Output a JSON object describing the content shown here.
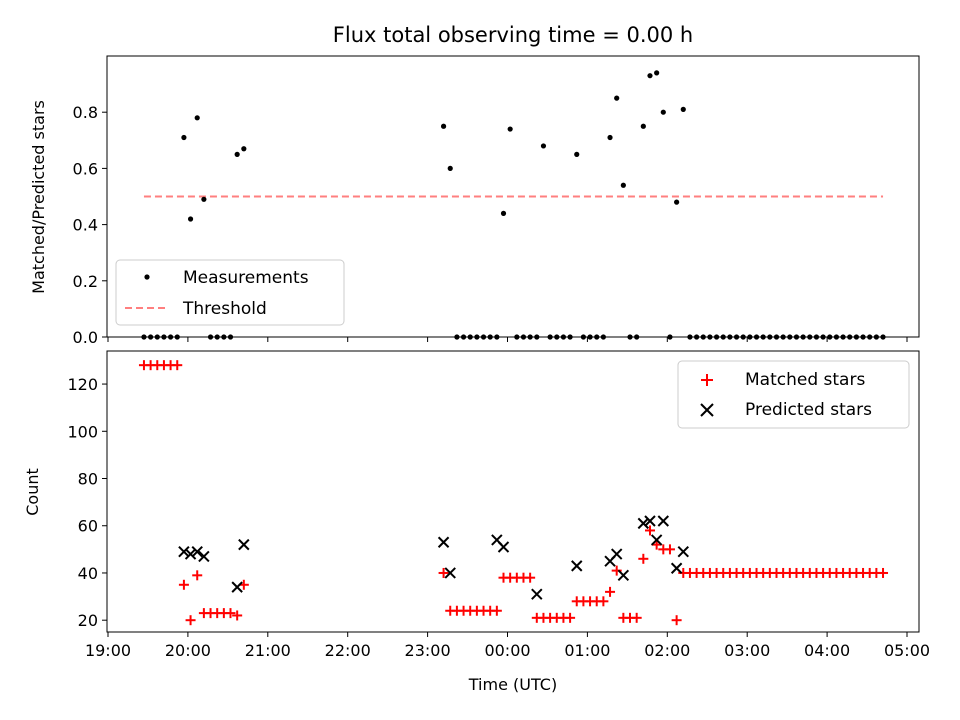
{
  "chart_data": [
    {
      "type": "scatter",
      "title": "Flux total observing time = 0.00 h",
      "xlabel": "",
      "ylabel": "Matched/Predicted stars",
      "xlim": [
        "19:00",
        "05:00"
      ],
      "ylim": [
        0,
        1.0
      ],
      "yticks": [
        "0.0",
        "0.2",
        "0.4",
        "0.6",
        "0.8"
      ],
      "legend_placement": "lower-left",
      "grid": false,
      "series": [
        {
          "name": "Measurements",
          "color": "#000000",
          "marker": "dot",
          "x": [
            "19:27",
            "19:32",
            "19:37",
            "19:42",
            "19:47",
            "19:52",
            "19:57",
            "20:02",
            "20:07",
            "20:12",
            "20:17",
            "20:22",
            "20:27",
            "20:32",
            "20:37",
            "20:42",
            "23:12",
            "23:17",
            "23:22",
            "23:27",
            "23:32",
            "23:37",
            "23:42",
            "23:47",
            "23:52",
            "23:57",
            "00:02",
            "00:07",
            "00:12",
            "00:17",
            "00:22",
            "00:27",
            "00:32",
            "00:37",
            "00:42",
            "00:47",
            "00:52",
            "00:57",
            "01:02",
            "01:07",
            "01:12",
            "01:17",
            "01:22",
            "01:27",
            "01:32",
            "01:37",
            "01:42",
            "01:47",
            "01:52",
            "01:57",
            "02:02",
            "02:07",
            "02:12",
            "02:17",
            "02:22",
            "02:27",
            "02:32",
            "02:37",
            "02:42",
            "02:47",
            "02:52",
            "02:57",
            "03:02",
            "03:07",
            "03:12",
            "03:17",
            "03:22",
            "03:27",
            "03:32",
            "03:37",
            "03:42",
            "03:47",
            "03:52",
            "03:57",
            "04:02",
            "04:07",
            "04:12",
            "04:17",
            "04:22",
            "04:27",
            "04:32",
            "04:37",
            "04:42"
          ],
          "y": [
            0,
            0,
            0,
            0,
            0,
            0,
            0.71,
            0.42,
            0.78,
            0.49,
            0,
            0,
            0,
            0,
            0.65,
            0.67,
            0.75,
            0.6,
            0,
            0,
            0,
            0,
            0,
            0,
            0,
            0.44,
            0.74,
            0,
            0,
            0,
            0,
            0.68,
            0,
            0,
            0,
            0,
            0.65,
            0,
            0,
            0,
            0,
            0.71,
            0.85,
            0.54,
            0,
            0,
            0.75,
            0.93,
            0.94,
            0.8,
            0,
            0.48,
            0.81,
            0,
            0,
            0,
            0,
            0,
            0,
            0,
            0,
            0,
            0,
            0,
            0,
            0,
            0,
            0,
            0,
            0,
            0,
            0,
            0,
            0,
            0,
            0,
            0,
            0,
            0,
            0,
            0,
            0,
            0
          ]
        },
        {
          "name": "Threshold",
          "color": "#ff7f7f",
          "style": "dashed",
          "x": [
            "19:27",
            "04:42"
          ],
          "y": [
            0.5,
            0.5
          ]
        }
      ]
    },
    {
      "type": "scatter",
      "title": "",
      "xlabel": "Time (UTC)",
      "ylabel": "Count",
      "xlim": [
        "19:00",
        "05:00"
      ],
      "ylim": [
        15,
        134
      ],
      "yticks": [
        "20",
        "40",
        "60",
        "80",
        "100",
        "120"
      ],
      "xticks": [
        "19:00",
        "20:00",
        "21:00",
        "22:00",
        "23:00",
        "00:00",
        "01:00",
        "02:00",
        "03:00",
        "04:00",
        "05:00"
      ],
      "legend_placement": "upper-right",
      "grid": false,
      "series": [
        {
          "name": "Matched stars",
          "color": "#ff0000",
          "marker": "plus",
          "x": [
            "19:27",
            "19:32",
            "19:37",
            "19:42",
            "19:47",
            "19:52",
            "19:57",
            "20:02",
            "20:07",
            "20:12",
            "20:17",
            "20:22",
            "20:27",
            "20:32",
            "20:37",
            "20:42",
            "23:12",
            "23:17",
            "23:22",
            "23:27",
            "23:32",
            "23:37",
            "23:42",
            "23:47",
            "23:52",
            "23:57",
            "00:02",
            "00:07",
            "00:12",
            "00:17",
            "00:22",
            "00:27",
            "00:32",
            "00:37",
            "00:42",
            "00:47",
            "00:52",
            "00:57",
            "01:02",
            "01:07",
            "01:12",
            "01:17",
            "01:22",
            "01:27",
            "01:32",
            "01:37",
            "01:42",
            "01:47",
            "01:52",
            "01:57",
            "02:02",
            "02:07",
            "02:12",
            "02:17",
            "02:22",
            "02:27",
            "02:32",
            "02:37",
            "02:42",
            "02:47",
            "02:52",
            "02:57",
            "03:02",
            "03:07",
            "03:12",
            "03:17",
            "03:22",
            "03:27",
            "03:32",
            "03:37",
            "03:42",
            "03:47",
            "03:52",
            "03:57",
            "04:02",
            "04:07",
            "04:12",
            "04:17",
            "04:22",
            "04:27",
            "04:32",
            "04:37",
            "04:42"
          ],
          "y": [
            128,
            128,
            128,
            128,
            128,
            128,
            35,
            20,
            39,
            23,
            23,
            23,
            23,
            23,
            22,
            35,
            40,
            24,
            24,
            24,
            24,
            24,
            24,
            24,
            24,
            38,
            38,
            38,
            38,
            38,
            21,
            21,
            21,
            21,
            21,
            21,
            28,
            28,
            28,
            28,
            28,
            32,
            41,
            21,
            21,
            21,
            46,
            58,
            52,
            50,
            50,
            20,
            40,
            40,
            40,
            40,
            40,
            40,
            40,
            40,
            40,
            40,
            40,
            40,
            40,
            40,
            40,
            40,
            40,
            40,
            40,
            40,
            40,
            40,
            40,
            40,
            40,
            40,
            40,
            40,
            40,
            40,
            40
          ]
        },
        {
          "name": "Predicted stars",
          "color": "#000000",
          "marker": "x",
          "x": [
            "19:57",
            "20:02",
            "20:07",
            "20:12",
            "20:37",
            "20:42",
            "23:12",
            "23:17",
            "23:52",
            "23:57",
            "00:22",
            "00:52",
            "01:17",
            "01:22",
            "01:27",
            "01:42",
            "01:47",
            "01:52",
            "01:57",
            "02:07",
            "02:12"
          ],
          "y": [
            49,
            48,
            49,
            47,
            34,
            52,
            53,
            40,
            54,
            51,
            31,
            43,
            45,
            48,
            39,
            61,
            62,
            54,
            62,
            42,
            49
          ]
        }
      ]
    }
  ]
}
